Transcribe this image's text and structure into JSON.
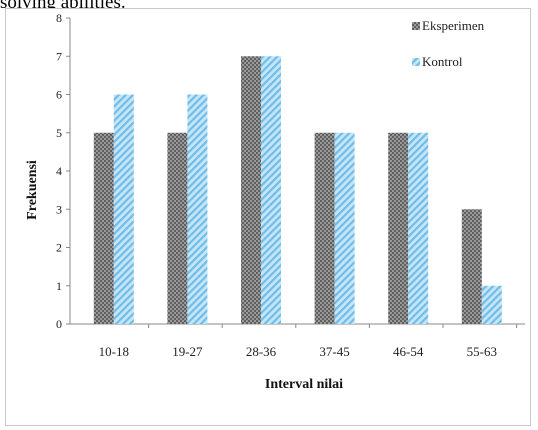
{
  "caption": "solving abilities.",
  "chart_data": {
    "type": "bar",
    "categories": [
      "10-18",
      "19-27",
      "28-36",
      "37-45",
      "46-54",
      "55-63"
    ],
    "series": [
      {
        "name": "Eksperimen",
        "values": [
          5,
          5,
          7,
          5,
          5,
          3
        ],
        "color": "#8a8a8a",
        "pattern": "checker"
      },
      {
        "name": "Kontrol",
        "values": [
          6,
          6,
          7,
          5,
          5,
          1
        ],
        "color": "#9fd3f0",
        "pattern": "diagonal"
      }
    ],
    "xlabel": "Interval nilai",
    "ylabel": "Frekuensi",
    "ylim": [
      0,
      8
    ],
    "yticks": [
      0,
      1,
      2,
      3,
      4,
      5,
      6,
      7,
      8
    ],
    "grid": false,
    "legend_position": "top-right"
  }
}
